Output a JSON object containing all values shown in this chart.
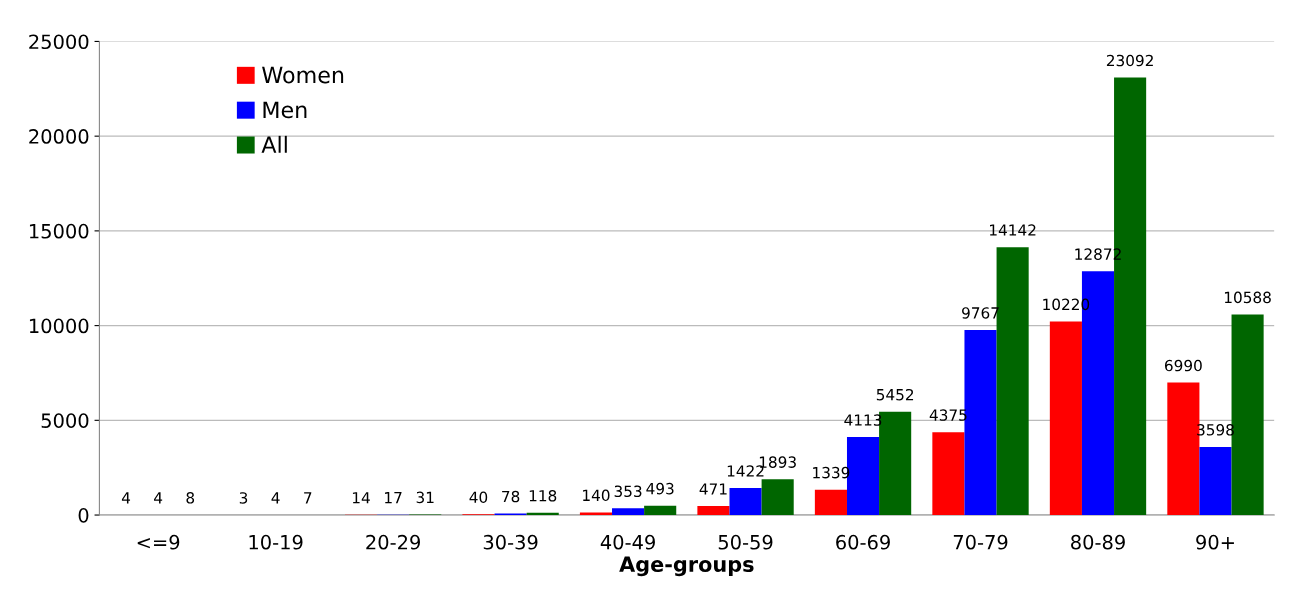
{
  "chart_data": {
    "type": "bar",
    "xlabel": "Age-groups",
    "categories": [
      "<=9",
      "10-19",
      "20-29",
      "30-39",
      "40-49",
      "50-59",
      "60-69",
      "70-79",
      "80-89",
      "90+"
    ],
    "series": [
      {
        "name": "Women",
        "color": "#ff0000",
        "values": [
          4,
          3,
          14,
          40,
          140,
          471,
          1339,
          4375,
          10220,
          6990
        ]
      },
      {
        "name": "Men",
        "color": "#0000ff",
        "values": [
          4,
          4,
          17,
          78,
          353,
          1422,
          4113,
          9767,
          12872,
          3598
        ]
      },
      {
        "name": "All",
        "color": "#006600",
        "values": [
          8,
          7,
          31,
          118,
          493,
          1893,
          5452,
          14142,
          23092,
          10588
        ]
      }
    ],
    "ylim": [
      0,
      25000
    ],
    "yticks": [
      0,
      5000,
      10000,
      15000,
      20000,
      25000
    ],
    "grid": "y",
    "legend": "top left",
    "data_labels": true
  }
}
